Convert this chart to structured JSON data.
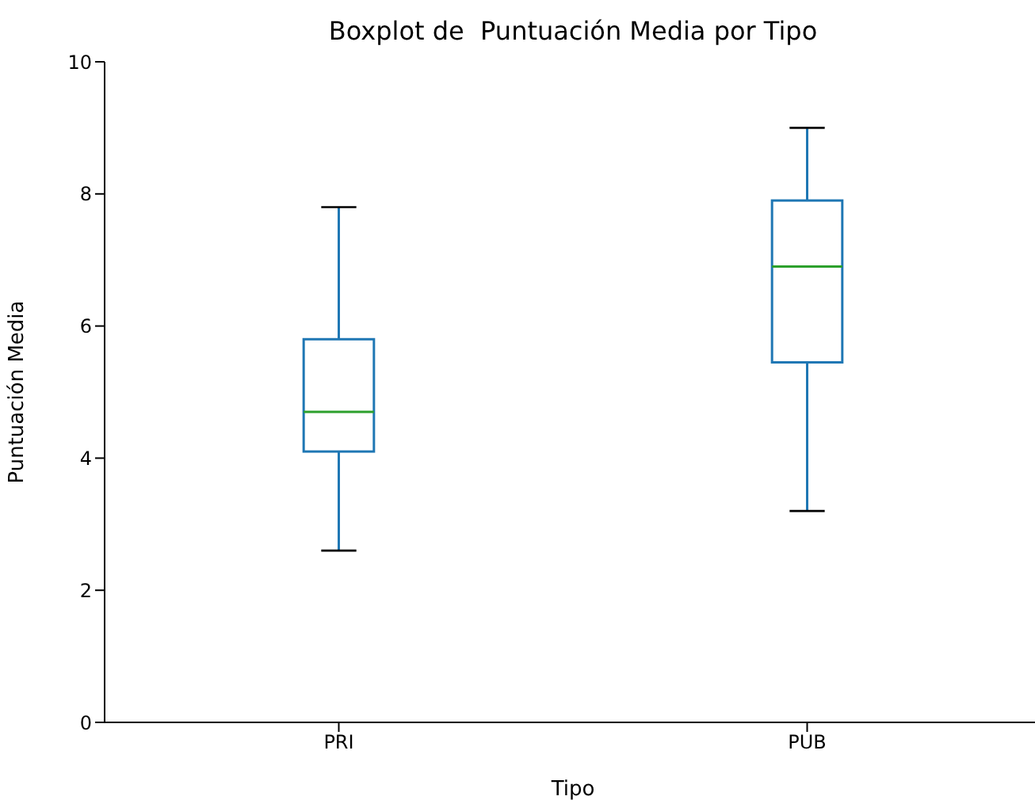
{
  "chart_data": {
    "type": "box",
    "title": "Boxplot de  Puntuación Media por Tipo",
    "xlabel": "Tipo",
    "ylabel": "Puntuación Media",
    "categories": [
      "PRI",
      "PUB"
    ],
    "series": [
      {
        "color": "#1f77b4",
        "boxes": [
          {
            "low": 2.6,
            "q1": 4.1,
            "median": 4.7,
            "q3": 5.8,
            "high": 7.8
          },
          {
            "low": 3.2,
            "q1": 5.45,
            "median": 6.9,
            "q3": 7.9,
            "high": 9.0
          }
        ]
      }
    ],
    "ylim": [
      0,
      10
    ],
    "yticks": [
      0,
      2,
      4,
      6,
      8,
      10
    ],
    "grid": false
  }
}
